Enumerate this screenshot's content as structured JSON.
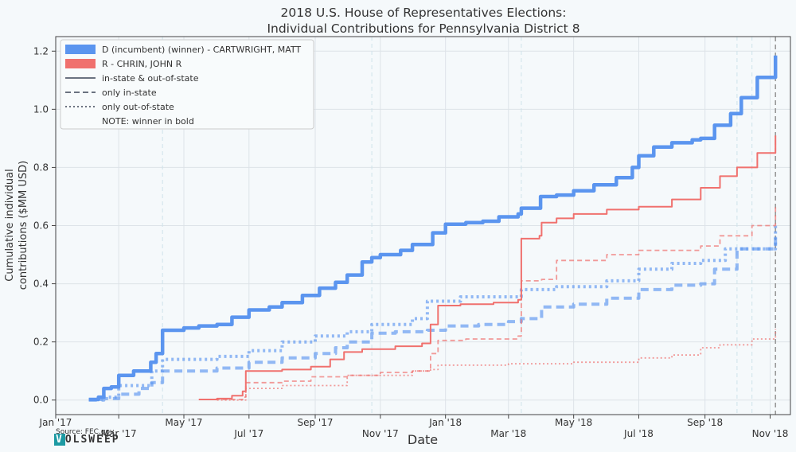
{
  "chart_data": {
    "type": "line",
    "title_line1": "2018 U.S. House of Representatives Elections:",
    "title_line2": "Individual Contributions for Pennsylvania District 8",
    "xlabel": "Date",
    "ylabel_line1": "Cumulative individual",
    "ylabel_line2": "contributions ($MM USD)",
    "ylim": [
      -0.05,
      1.25
    ],
    "xlim": [
      "2017-01-01",
      "2018-11-20"
    ],
    "y_ticks": [
      0.0,
      0.2,
      0.4,
      0.6,
      0.8,
      1.0,
      1.2
    ],
    "y_tick_labels": [
      "0.0",
      "0.2",
      "0.4",
      "0.6",
      "0.8",
      "1.0",
      "1.2"
    ],
    "x_ticks": [
      "2017-01-01",
      "2017-03-01",
      "2017-05-01",
      "2017-07-01",
      "2017-09-01",
      "2017-11-01",
      "2018-01-01",
      "2018-03-01",
      "2018-05-01",
      "2018-07-01",
      "2018-09-01",
      "2018-11-01"
    ],
    "x_tick_labels": [
      "Jan '17",
      "Mar '17",
      "May '17",
      "Jul '17",
      "Sep '17",
      "Nov '17",
      "Jan '18",
      "Mar '18",
      "May '18",
      "Jul '18",
      "Sep '18",
      "Nov '18"
    ],
    "grid": true,
    "legend_position": "top-left",
    "legend": {
      "dem": "D (incumbent) (winner) - CARTWRIGHT, MATT",
      "rep": "R - CHRIN, JOHN R",
      "solid": "in-state & out-of-state",
      "dashed": "only in-state",
      "dotted": "only out-of-state",
      "note": "NOTE: winner in bold"
    },
    "colors": {
      "dem": "#5b95ef",
      "rep": "#f0716e"
    },
    "election_day": "2018-11-06",
    "vertical_markers": [
      "2017-04-11",
      "2017-10-24",
      "2018-03-13",
      "2018-10-01",
      "2018-10-15"
    ],
    "series": [
      {
        "name": "D (incumbent) (winner) - CARTWRIGHT, MATT",
        "party": "dem",
        "style": "solid",
        "x": [
          "2017-02-01",
          "2017-02-10",
          "2017-02-15",
          "2017-02-22",
          "2017-03-01",
          "2017-03-15",
          "2017-03-31",
          "2017-04-05",
          "2017-04-11",
          "2017-05-01",
          "2017-05-15",
          "2017-06-01",
          "2017-06-15",
          "2017-07-01",
          "2017-07-20",
          "2017-08-01",
          "2017-08-20",
          "2017-09-05",
          "2017-09-20",
          "2017-10-01",
          "2017-10-15",
          "2017-10-24",
          "2017-11-01",
          "2017-11-20",
          "2017-12-01",
          "2017-12-20",
          "2018-01-01",
          "2018-01-20",
          "2018-02-05",
          "2018-02-20",
          "2018-03-10",
          "2018-03-13",
          "2018-03-31",
          "2018-04-15",
          "2018-05-01",
          "2018-05-20",
          "2018-06-10",
          "2018-06-25",
          "2018-07-01",
          "2018-07-15",
          "2018-08-01",
          "2018-08-20",
          "2018-08-28",
          "2018-09-10",
          "2018-09-25",
          "2018-10-05",
          "2018-10-20",
          "2018-11-06"
        ],
        "y": [
          0.002,
          0.01,
          0.04,
          0.045,
          0.085,
          0.1,
          0.13,
          0.16,
          0.24,
          0.248,
          0.255,
          0.26,
          0.285,
          0.31,
          0.32,
          0.335,
          0.36,
          0.385,
          0.405,
          0.43,
          0.475,
          0.49,
          0.5,
          0.515,
          0.535,
          0.575,
          0.605,
          0.61,
          0.615,
          0.63,
          0.64,
          0.66,
          0.7,
          0.705,
          0.72,
          0.74,
          0.765,
          0.8,
          0.84,
          0.87,
          0.885,
          0.895,
          0.9,
          0.945,
          0.985,
          1.04,
          1.11,
          1.185
        ]
      },
      {
        "name": "D only in-state",
        "party": "dem",
        "style": "dashed",
        "x": [
          "2017-02-01",
          "2017-02-15",
          "2017-03-01",
          "2017-03-20",
          "2017-04-01",
          "2017-04-11",
          "2017-05-01",
          "2017-06-01",
          "2017-07-01",
          "2017-08-01",
          "2017-09-01",
          "2017-09-20",
          "2017-10-01",
          "2017-10-24",
          "2017-11-15",
          "2017-12-15",
          "2018-01-01",
          "2018-02-01",
          "2018-03-01",
          "2018-03-13",
          "2018-04-01",
          "2018-05-01",
          "2018-06-01",
          "2018-07-01",
          "2018-08-01",
          "2018-08-28",
          "2018-09-10",
          "2018-10-01",
          "2018-11-06"
        ],
        "y": [
          0.0,
          0.005,
          0.02,
          0.04,
          0.06,
          0.1,
          0.1,
          0.11,
          0.13,
          0.145,
          0.16,
          0.18,
          0.2,
          0.23,
          0.235,
          0.24,
          0.255,
          0.26,
          0.27,
          0.28,
          0.32,
          0.33,
          0.35,
          0.38,
          0.395,
          0.4,
          0.45,
          0.52,
          0.57
        ]
      },
      {
        "name": "D only out-of-state",
        "party": "dem",
        "style": "dotted",
        "x": [
          "2017-02-01",
          "2017-02-15",
          "2017-03-01",
          "2017-04-01",
          "2017-04-11",
          "2017-06-01",
          "2017-07-01",
          "2017-08-01",
          "2017-09-01",
          "2017-10-01",
          "2017-10-24",
          "2017-12-01",
          "2017-12-15",
          "2018-01-15",
          "2018-02-15",
          "2018-03-13",
          "2018-04-15",
          "2018-06-01",
          "2018-07-01",
          "2018-08-01",
          "2018-08-28",
          "2018-09-20",
          "2018-11-06"
        ],
        "y": [
          0.002,
          0.01,
          0.05,
          0.1,
          0.14,
          0.15,
          0.17,
          0.2,
          0.22,
          0.235,
          0.26,
          0.28,
          0.34,
          0.355,
          0.355,
          0.38,
          0.39,
          0.41,
          0.45,
          0.47,
          0.48,
          0.52,
          0.6
        ]
      },
      {
        "name": "R - CHRIN, JOHN R",
        "party": "rep",
        "style": "solid",
        "x": [
          "2017-05-15",
          "2017-06-01",
          "2017-06-15",
          "2017-06-25",
          "2017-06-28",
          "2017-08-01",
          "2017-08-28",
          "2017-09-15",
          "2017-09-28",
          "2017-10-15",
          "2017-11-15",
          "2017-12-10",
          "2017-12-18",
          "2017-12-25",
          "2018-01-15",
          "2018-02-15",
          "2018-03-10",
          "2018-03-13",
          "2018-03-30",
          "2018-04-01",
          "2018-04-15",
          "2018-05-01",
          "2018-06-01",
          "2018-07-01",
          "2018-08-01",
          "2018-08-28",
          "2018-09-15",
          "2018-10-01",
          "2018-10-20",
          "2018-11-06"
        ],
        "y": [
          0.002,
          0.005,
          0.015,
          0.03,
          0.1,
          0.105,
          0.115,
          0.14,
          0.165,
          0.175,
          0.185,
          0.195,
          0.26,
          0.325,
          0.33,
          0.335,
          0.345,
          0.555,
          0.565,
          0.61,
          0.625,
          0.64,
          0.655,
          0.665,
          0.69,
          0.73,
          0.77,
          0.8,
          0.85,
          0.91
        ]
      },
      {
        "name": "R only in-state",
        "party": "rep",
        "style": "dashed",
        "x": [
          "2017-05-15",
          "2017-06-25",
          "2017-06-28",
          "2017-08-01",
          "2017-08-28",
          "2017-10-01",
          "2017-11-01",
          "2017-12-01",
          "2017-12-18",
          "2017-12-25",
          "2018-01-20",
          "2018-03-10",
          "2018-03-13",
          "2018-04-01",
          "2018-04-15",
          "2018-06-01",
          "2018-07-01",
          "2018-08-28",
          "2018-09-15",
          "2018-10-15",
          "2018-11-06"
        ],
        "y": [
          0.002,
          0.01,
          0.06,
          0.065,
          0.08,
          0.085,
          0.095,
          0.1,
          0.16,
          0.205,
          0.21,
          0.22,
          0.41,
          0.415,
          0.48,
          0.5,
          0.515,
          0.53,
          0.565,
          0.6,
          0.665
        ]
      },
      {
        "name": "R only out-of-state",
        "party": "rep",
        "style": "dotted",
        "x": [
          "2017-06-01",
          "2017-06-28",
          "2017-08-01",
          "2017-10-01",
          "2017-12-01",
          "2017-12-18",
          "2017-12-25",
          "2018-03-01",
          "2018-05-01",
          "2018-07-01",
          "2018-08-01",
          "2018-08-28",
          "2018-09-15",
          "2018-10-15",
          "2018-11-06"
        ],
        "y": [
          0.0,
          0.04,
          0.05,
          0.085,
          0.1,
          0.105,
          0.12,
          0.125,
          0.13,
          0.145,
          0.155,
          0.18,
          0.19,
          0.21,
          0.245
        ]
      }
    ],
    "source": "Source: FEC.gov",
    "brand": {
      "first": "V",
      "rest": "OLSWEEP"
    }
  }
}
